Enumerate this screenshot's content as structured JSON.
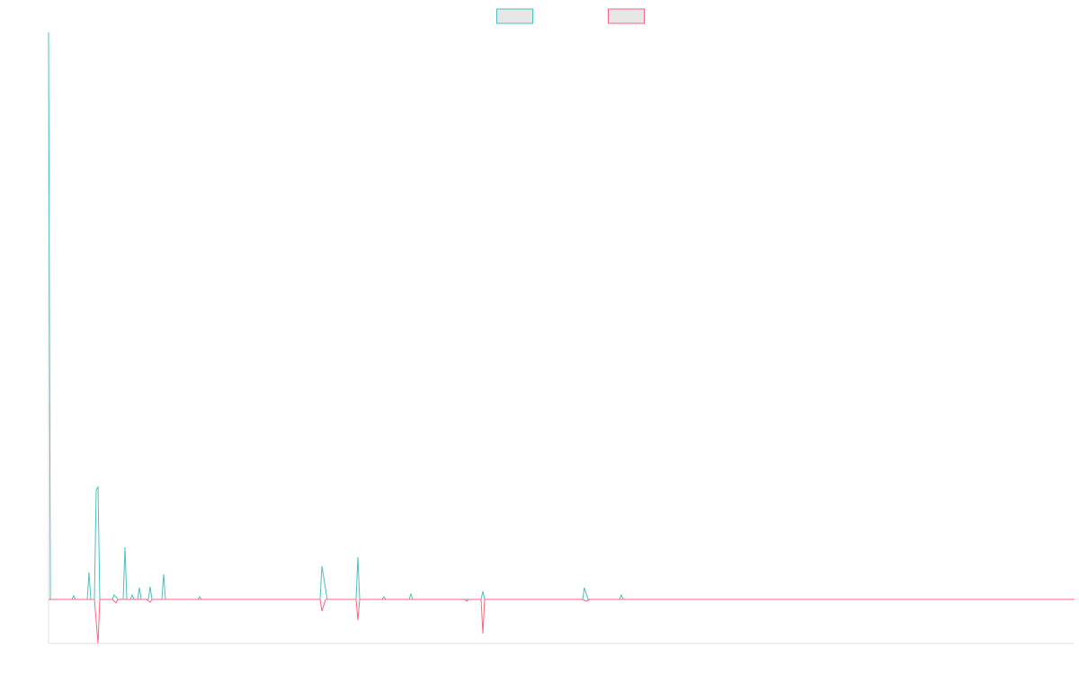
{
  "chart_data": {
    "type": "line",
    "xlim": [
      0,
      1141
    ],
    "ylim": [
      -4.9,
      63.1
    ],
    "legend": "top",
    "grid": false,
    "series": [
      {
        "color": "#4bc0c0",
        "x": [
          0,
          2,
          26,
          28,
          30,
          43,
          45,
          47,
          51,
          53,
          55,
          57,
          71,
          73,
          77,
          83,
          85,
          87,
          91,
          93,
          95,
          99,
          101,
          103,
          111,
          113,
          115,
          126,
          128,
          130,
          166,
          168,
          170,
          302,
          304,
          308,
          310,
          342,
          344,
          346,
          371,
          373,
          375,
          401,
          403,
          405,
          481,
          483,
          485,
          594,
          596,
          600,
          635,
          637,
          639,
          1141
        ],
        "values": [
          63.1,
          0,
          0,
          0.4,
          0,
          0,
          3,
          0,
          0,
          12.2,
          12.5,
          0,
          0,
          0.5,
          0,
          0,
          5.8,
          0,
          0,
          0.5,
          0,
          0,
          1.3,
          0,
          0,
          1.4,
          0,
          0,
          2.8,
          0,
          0,
          0.3,
          0,
          0,
          3.7,
          1.2,
          0,
          0,
          4.7,
          0,
          0,
          0.3,
          0,
          0,
          0.6,
          0,
          0,
          0.9,
          0,
          0,
          1.3,
          0,
          0,
          0.5,
          0,
          0
        ]
      },
      {
        "color": "#ff6384",
        "x": [
          0,
          51,
          55,
          57,
          71,
          75,
          77,
          109,
          113,
          115,
          302,
          304,
          308,
          342,
          344,
          346,
          463,
          465,
          467,
          481,
          483,
          485,
          594,
          598,
          602,
          1141
        ],
        "values": [
          0,
          0,
          -4.9,
          0,
          0,
          -0.4,
          0,
          0,
          -0.3,
          0,
          0,
          -1.3,
          0,
          0,
          -2.3,
          0,
          0,
          -0.2,
          0,
          0,
          -3.8,
          0,
          0,
          -0.2,
          0,
          0
        ]
      }
    ]
  }
}
